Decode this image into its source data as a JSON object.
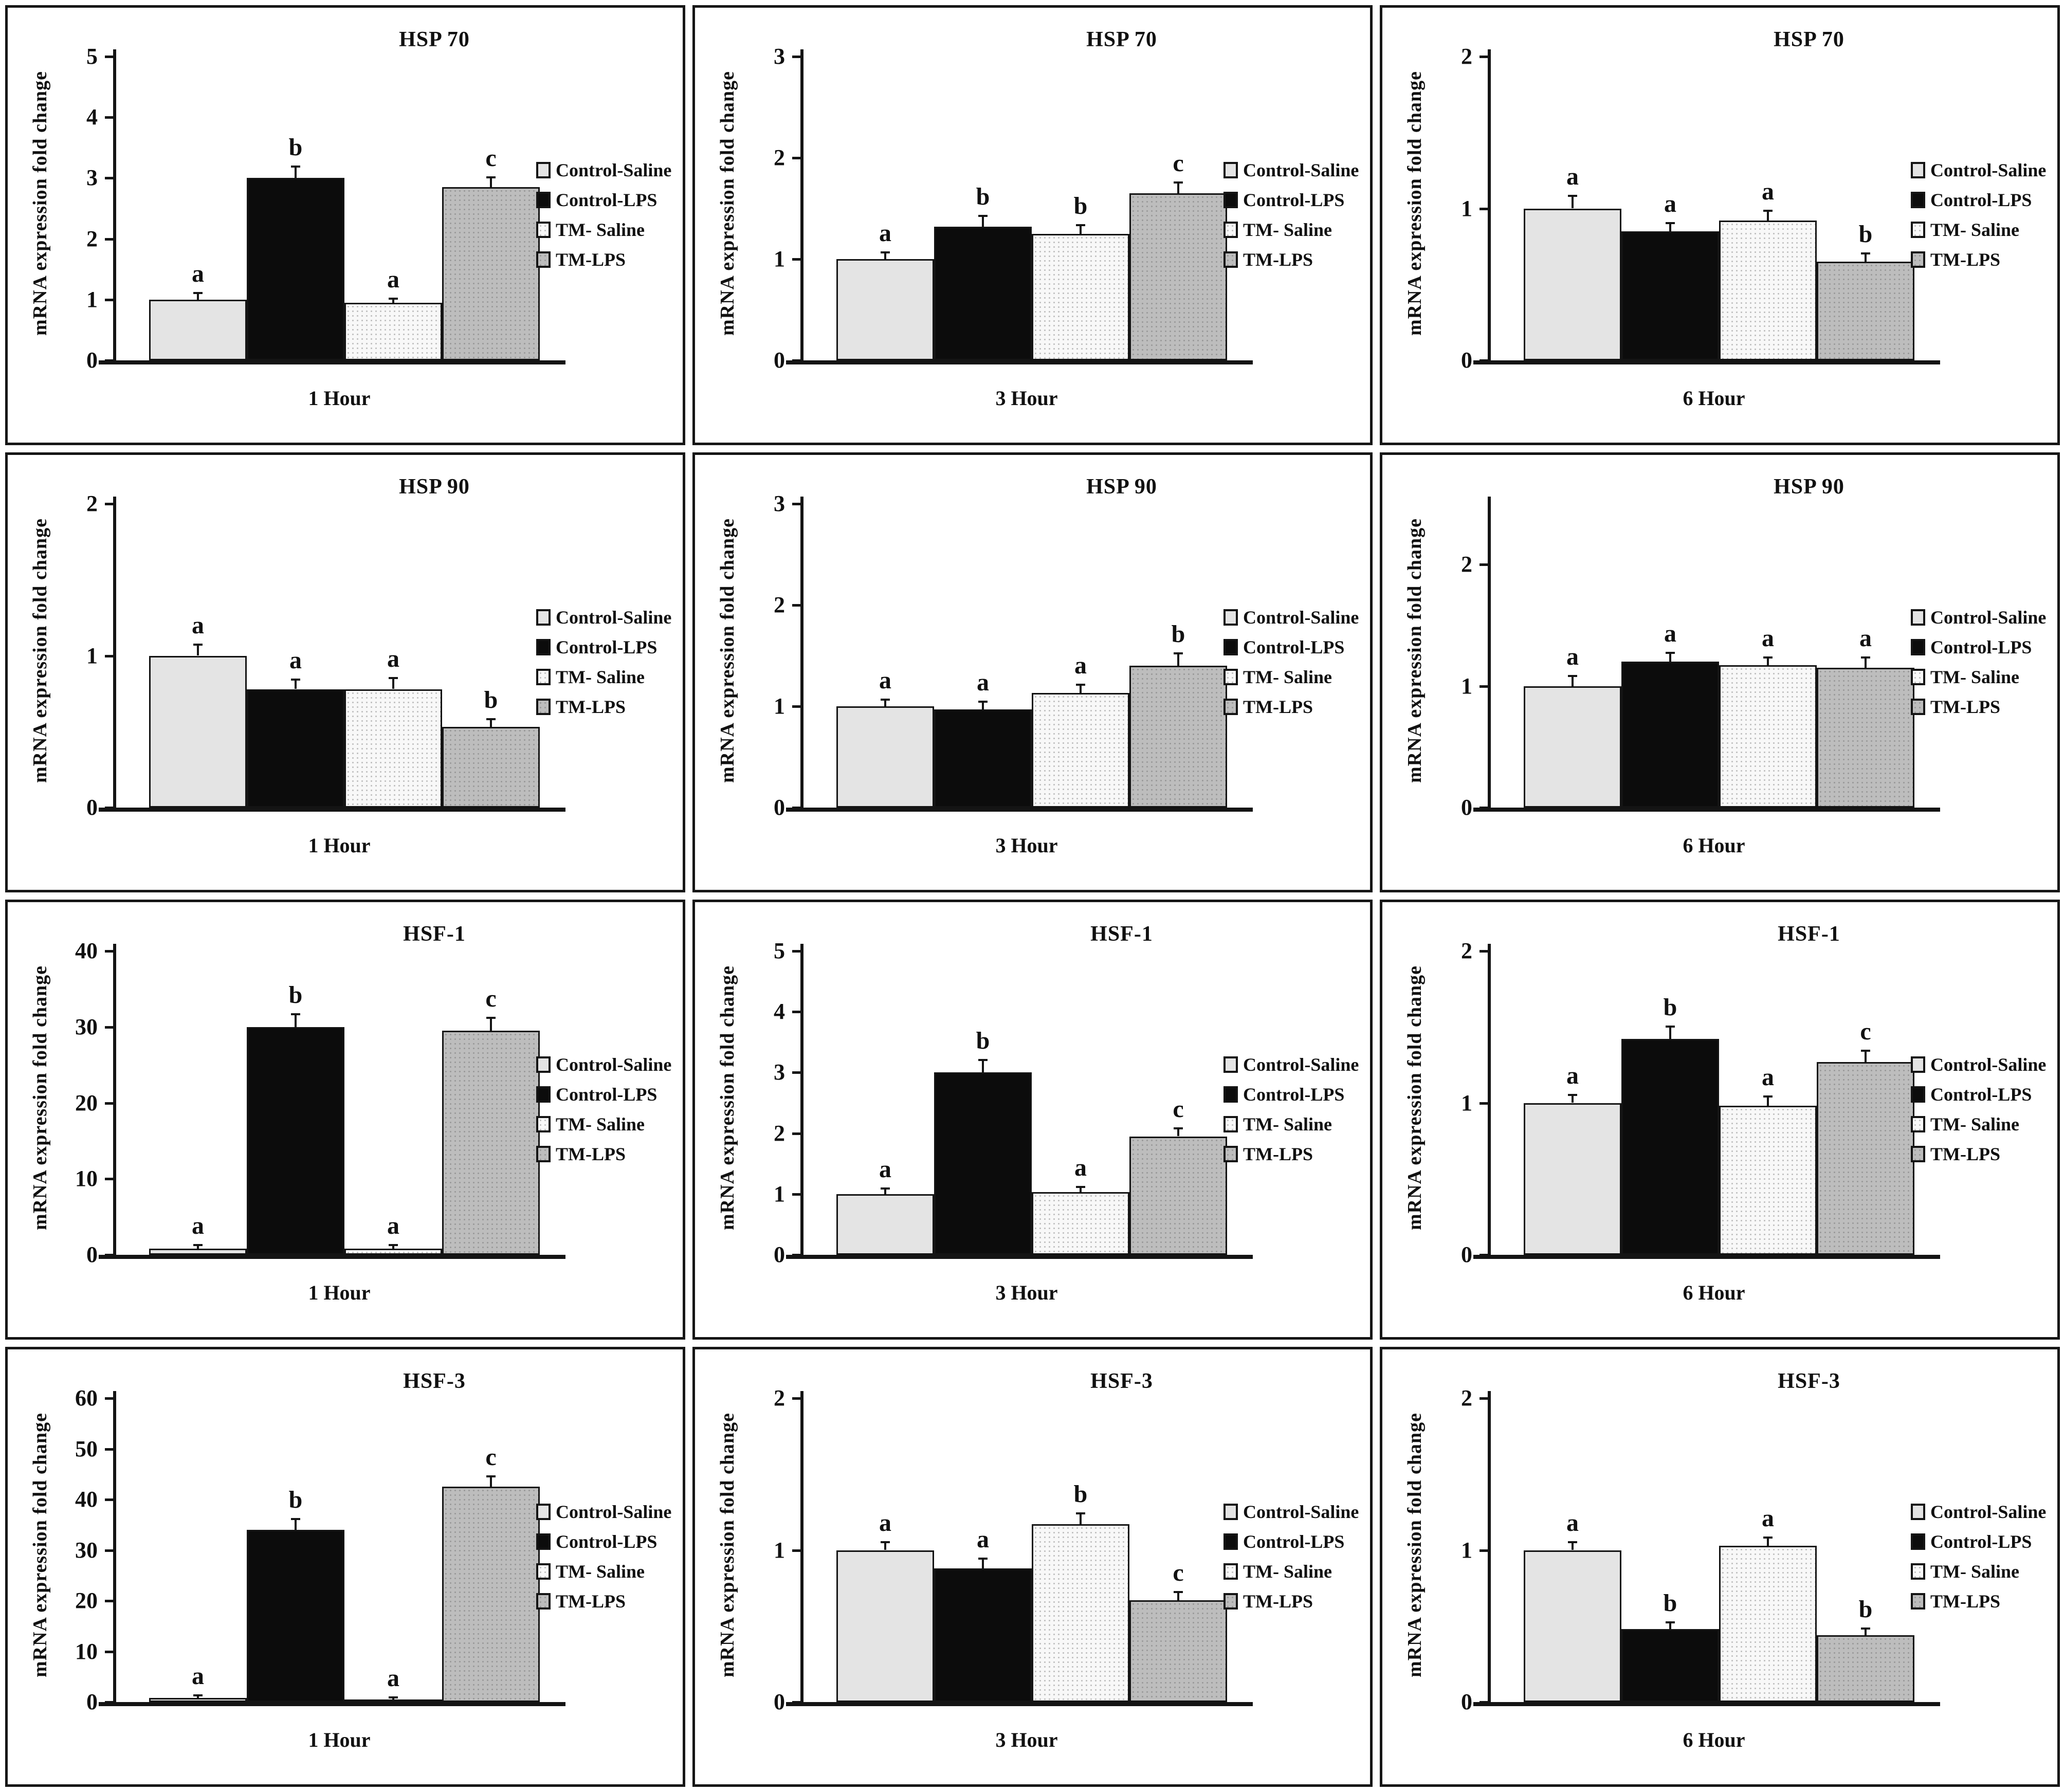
{
  "figure": {
    "ylabel": "mRNA expression fold change",
    "legend": {
      "position": "right",
      "items": [
        {
          "label": "Control-Saline",
          "color": "#e4e4e4",
          "pattern": "solid"
        },
        {
          "label": "Control-LPS",
          "color": "#0c0c0c",
          "pattern": "solid"
        },
        {
          "label": "TM- Saline",
          "color": "#f8f8f8",
          "pattern": "dots"
        },
        {
          "label": "TM-LPS",
          "color": "#bdbdbd",
          "pattern": "dots"
        }
      ]
    },
    "colors": {
      "axis": "#141414",
      "control_saline": "#e4e4e4",
      "control_lps": "#0c0c0c",
      "tm_saline": "#f8f8f8",
      "tm_lps": "#bdbdbd"
    }
  },
  "chart_data": [
    {
      "type": "bar",
      "title": "HSP 70",
      "xlabel": "1 Hour",
      "ylabel": "mRNA expression fold change",
      "grid": false,
      "legend_position": "right",
      "categories": [
        "Control-Saline",
        "Control-LPS",
        "TM- Saline",
        "TM-LPS"
      ],
      "values": [
        1.0,
        3.0,
        0.95,
        2.85
      ],
      "errors": [
        0.1,
        0.18,
        0.06,
        0.15
      ],
      "sig_letters": [
        "a",
        "b",
        "a",
        "c"
      ],
      "ylim": [
        0,
        5
      ],
      "yticks": [
        0,
        1,
        2,
        3,
        4,
        5
      ]
    },
    {
      "type": "bar",
      "title": "HSP 70",
      "xlabel": "3 Hour",
      "ylabel": "mRNA expression fold change",
      "grid": false,
      "legend_position": "right",
      "categories": [
        "Control-Saline",
        "Control-LPS",
        "TM- Saline",
        "TM-LPS"
      ],
      "values": [
        1.0,
        1.32,
        1.25,
        1.65
      ],
      "errors": [
        0.06,
        0.1,
        0.08,
        0.1
      ],
      "sig_letters": [
        "a",
        "b",
        "b",
        "c"
      ],
      "ylim": [
        0,
        3
      ],
      "yticks": [
        0,
        1,
        2,
        3
      ]
    },
    {
      "type": "bar",
      "title": "HSP 70",
      "xlabel": "6 Hour",
      "ylabel": "mRNA expression fold change",
      "grid": false,
      "legend_position": "right",
      "categories": [
        "Control-Saline",
        "Control-LPS",
        "TM- Saline",
        "TM-LPS"
      ],
      "values": [
        1.0,
        0.85,
        0.92,
        0.65
      ],
      "errors": [
        0.08,
        0.05,
        0.06,
        0.05
      ],
      "sig_letters": [
        "a",
        "a",
        "a",
        "b"
      ],
      "ylim": [
        0,
        2
      ],
      "yticks": [
        0,
        1,
        2
      ]
    },
    {
      "type": "bar",
      "title": "HSP 90",
      "xlabel": "1 Hour",
      "ylabel": "mRNA expression fold change",
      "grid": false,
      "legend_position": "right",
      "categories": [
        "Control-Saline",
        "Control-LPS",
        "TM- Saline",
        "TM-LPS"
      ],
      "values": [
        1.0,
        0.78,
        0.78,
        0.53
      ],
      "errors": [
        0.07,
        0.06,
        0.07,
        0.05
      ],
      "sig_letters": [
        "a",
        "a",
        "a",
        "b"
      ],
      "ylim": [
        0,
        2
      ],
      "yticks": [
        0,
        1,
        2
      ]
    },
    {
      "type": "bar",
      "title": "HSP 90",
      "xlabel": "3 Hour",
      "ylabel": "mRNA expression fold change",
      "grid": false,
      "legend_position": "right",
      "categories": [
        "Control-Saline",
        "Control-LPS",
        "TM- Saline",
        "TM-LPS"
      ],
      "values": [
        1.0,
        0.97,
        1.13,
        1.4
      ],
      "errors": [
        0.06,
        0.07,
        0.08,
        0.12
      ],
      "sig_letters": [
        "a",
        "a",
        "a",
        "b"
      ],
      "ylim": [
        0,
        3
      ],
      "yticks": [
        0,
        1,
        2,
        3
      ]
    },
    {
      "type": "bar",
      "title": "HSP 90",
      "xlabel": "6 Hour",
      "ylabel": "mRNA expression fold change",
      "grid": false,
      "legend_position": "right",
      "categories": [
        "Control-Saline",
        "Control-LPS",
        "TM- Saline",
        "TM-LPS"
      ],
      "values": [
        1.0,
        1.2,
        1.17,
        1.15
      ],
      "errors": [
        0.08,
        0.07,
        0.06,
        0.08
      ],
      "sig_letters": [
        "a",
        "a",
        "a",
        "a"
      ],
      "ylim": [
        0,
        2.5
      ],
      "yticks": [
        0,
        1,
        2
      ]
    },
    {
      "type": "bar",
      "title": "HSF-1",
      "xlabel": "1 Hour",
      "ylabel": "mRNA expression fold change",
      "grid": false,
      "legend_position": "right",
      "categories": [
        "Control-Saline",
        "Control-LPS",
        "TM- Saline",
        "TM-LPS"
      ],
      "values": [
        0.8,
        30,
        0.8,
        29.5
      ],
      "errors": [
        0.4,
        1.6,
        0.4,
        1.6
      ],
      "sig_letters": [
        "a",
        "b",
        "a",
        "c"
      ],
      "ylim": [
        0,
        40
      ],
      "yticks": [
        0,
        10,
        20,
        30,
        40
      ]
    },
    {
      "type": "bar",
      "title": "HSF-1",
      "xlabel": "3 Hour",
      "ylabel": "mRNA expression fold change",
      "grid": false,
      "legend_position": "right",
      "categories": [
        "Control-Saline",
        "Control-LPS",
        "TM- Saline",
        "TM-LPS"
      ],
      "values": [
        1.0,
        3.0,
        1.03,
        1.95
      ],
      "errors": [
        0.08,
        0.2,
        0.08,
        0.12
      ],
      "sig_letters": [
        "a",
        "b",
        "a",
        "c"
      ],
      "ylim": [
        0,
        5
      ],
      "yticks": [
        0,
        1,
        2,
        3,
        4,
        5
      ]
    },
    {
      "type": "bar",
      "title": "HSF-1",
      "xlabel": "6 Hour",
      "ylabel": "mRNA expression fold change",
      "grid": false,
      "legend_position": "right",
      "categories": [
        "Control-Saline",
        "Control-LPS",
        "TM- Saline",
        "TM-LPS"
      ],
      "values": [
        1.0,
        1.42,
        0.98,
        1.27
      ],
      "errors": [
        0.05,
        0.08,
        0.06,
        0.07
      ],
      "sig_letters": [
        "a",
        "b",
        "a",
        "c"
      ],
      "ylim": [
        0,
        2
      ],
      "yticks": [
        0,
        1,
        2
      ]
    },
    {
      "type": "bar",
      "title": "HSF-3",
      "xlabel": "1 Hour",
      "ylabel": "mRNA expression fold change",
      "grid": false,
      "legend_position": "right",
      "categories": [
        "Control-Saline",
        "Control-LPS",
        "TM- Saline",
        "TM-LPS"
      ],
      "values": [
        0.8,
        34,
        0.5,
        42.5
      ],
      "errors": [
        0.4,
        2.0,
        0.3,
        2.0
      ],
      "sig_letters": [
        "a",
        "b",
        "a",
        "c"
      ],
      "ylim": [
        0,
        60
      ],
      "yticks": [
        0,
        10,
        20,
        30,
        40,
        50,
        60
      ]
    },
    {
      "type": "bar",
      "title": "HSF-3",
      "xlabel": "3 Hour",
      "ylabel": "mRNA expression fold change",
      "grid": false,
      "legend_position": "right",
      "categories": [
        "Control-Saline",
        "Control-LPS",
        "TM- Saline",
        "TM-LPS"
      ],
      "values": [
        1.0,
        0.88,
        1.17,
        0.67
      ],
      "errors": [
        0.05,
        0.06,
        0.07,
        0.05
      ],
      "sig_letters": [
        "a",
        "a",
        "b",
        "c"
      ],
      "ylim": [
        0,
        2
      ],
      "yticks": [
        0,
        1,
        2
      ]
    },
    {
      "type": "bar",
      "title": "HSF-3",
      "xlabel": "6 Hour",
      "ylabel": "mRNA expression fold change",
      "grid": false,
      "legend_position": "right",
      "categories": [
        "Control-Saline",
        "Control-LPS",
        "TM- Saline",
        "TM-LPS"
      ],
      "values": [
        1.0,
        0.48,
        1.03,
        0.44
      ],
      "errors": [
        0.05,
        0.04,
        0.05,
        0.04
      ],
      "sig_letters": [
        "a",
        "b",
        "a",
        "b"
      ],
      "ylim": [
        0,
        2
      ],
      "yticks": [
        0,
        1,
        2
      ]
    }
  ]
}
